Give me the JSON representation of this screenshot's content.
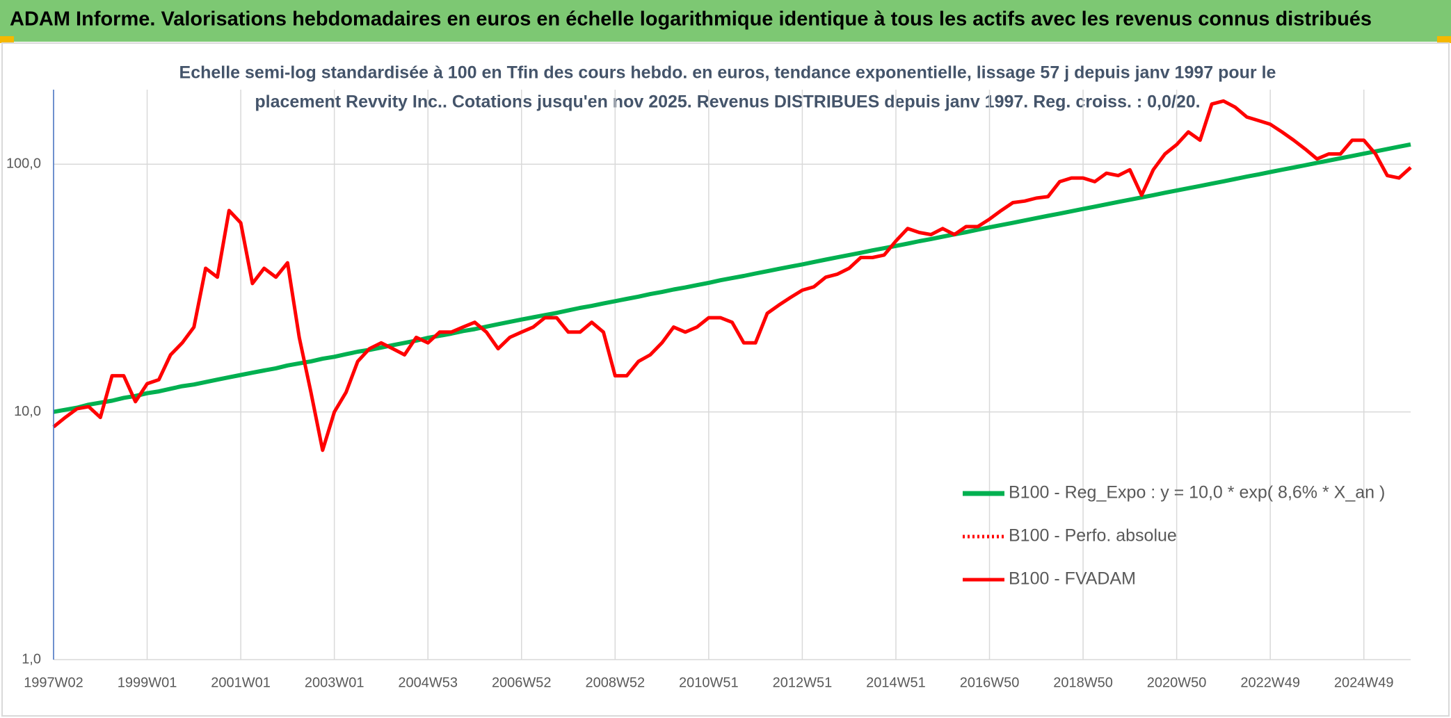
{
  "chart_data": {
    "type": "line",
    "title": "ADAM Informe. Valorisations hebdomadaires en euros en échelle logarithmique identique à tous les actifs avec les revenus connus distribués",
    "subtitle": [
      "Echelle semi-log standardisée à 100 en Tfin des cours hebdo. en euros, tendance exponentielle, lissage 57 j depuis janv 1997 pour le",
      "placement Revvity Inc.. Cotations jusqu'en nov 2025. Revenus DISTRIBUES depuis janv 1997. Reg. croiss. : 0,0/20."
    ],
    "log_scale": true,
    "grid": true,
    "legend": "right",
    "ylim": [
      1,
      200
    ],
    "yticks": [
      {
        "value": 1,
        "label": "1,0"
      },
      {
        "value": 10,
        "label": "10,0"
      },
      {
        "value": 100,
        "label": "100,0"
      }
    ],
    "categories": [
      "1997W02",
      null,
      null,
      null,
      null,
      null,
      null,
      null,
      "1999W01",
      null,
      null,
      null,
      null,
      null,
      null,
      null,
      "2001W01",
      null,
      null,
      null,
      null,
      null,
      null,
      null,
      "2003W01",
      null,
      null,
      null,
      null,
      null,
      null,
      null,
      "2004W53",
      null,
      null,
      null,
      null,
      null,
      null,
      null,
      "2006W52",
      null,
      null,
      null,
      null,
      null,
      null,
      null,
      "2008W52",
      null,
      null,
      null,
      null,
      null,
      null,
      null,
      "2010W51",
      null,
      null,
      null,
      null,
      null,
      null,
      null,
      "2012W51",
      null,
      null,
      null,
      null,
      null,
      null,
      null,
      "2014W51",
      null,
      null,
      null,
      null,
      null,
      null,
      null,
      "2016W50",
      null,
      null,
      null,
      null,
      null,
      null,
      null,
      "2018W50",
      null,
      null,
      null,
      null,
      null,
      null,
      null,
      "2020W50",
      null,
      null,
      null,
      null,
      null,
      null,
      null,
      "2022W49",
      null,
      null,
      null,
      null,
      null,
      null,
      null,
      "2024W49",
      null,
      null,
      null,
      null
    ],
    "series": [
      {
        "name": "B100 - Reg_Expo : y = 10,0 * exp( 8,6% *  X_an )",
        "color": "#00b050",
        "style": "solid",
        "values": [
          10.0,
          10.2,
          10.4,
          10.7,
          10.9,
          11.1,
          11.4,
          11.6,
          11.9,
          12.1,
          12.4,
          12.7,
          12.9,
          13.2,
          13.5,
          13.8,
          14.1,
          14.4,
          14.7,
          15.0,
          15.4,
          15.7,
          16.0,
          16.4,
          16.7,
          17.1,
          17.5,
          17.8,
          18.2,
          18.6,
          19.0,
          19.4,
          19.9,
          20.3,
          20.7,
          21.2,
          21.6,
          22.1,
          22.6,
          23.1,
          23.6,
          24.1,
          24.6,
          25.1,
          25.7,
          26.3,
          26.8,
          27.4,
          28.0,
          28.6,
          29.2,
          29.9,
          30.5,
          31.2,
          31.8,
          32.5,
          33.2,
          34.0,
          34.7,
          35.4,
          36.2,
          37.0,
          37.8,
          38.6,
          39.4,
          40.3,
          41.2,
          42.1,
          43.0,
          43.9,
          44.9,
          45.8,
          46.8,
          47.8,
          48.9,
          49.9,
          51.0,
          52.1,
          53.2,
          54.4,
          55.6,
          56.8,
          58.0,
          59.3,
          60.6,
          61.9,
          63.2,
          64.6,
          66.0,
          67.4,
          68.9,
          70.4,
          71.9,
          73.4,
          75.0,
          76.7,
          78.3,
          80.0,
          81.7,
          83.5,
          85.3,
          87.2,
          89.1,
          91.0,
          93.0,
          95.0,
          97.0,
          99.1,
          101.3,
          103.5,
          105.7,
          108.0,
          110.3,
          112.7,
          115.2,
          117.7,
          120.2
        ]
      },
      {
        "name": "B100 - Perfo. absolue",
        "color": "#ff0000",
        "style": "dotted",
        "values": [
          8.7,
          9.5,
          10.3,
          10.5,
          9.5,
          14,
          14,
          11,
          13,
          13.5,
          17,
          19,
          22,
          38,
          35,
          65,
          58,
          33,
          38,
          35,
          40,
          20,
          12,
          7,
          10,
          12,
          16,
          18,
          19,
          18,
          17,
          20,
          19,
          21,
          21,
          22,
          23,
          21,
          18,
          20,
          21,
          22,
          24,
          24,
          21,
          21,
          23,
          21,
          14,
          14,
          16,
          17,
          19,
          22,
          21,
          22,
          24,
          24,
          23,
          19,
          19,
          25,
          27,
          29,
          31,
          32,
          35,
          36,
          38,
          42,
          42,
          43,
          49,
          55,
          53,
          52,
          55,
          52,
          56,
          56,
          60,
          65,
          70,
          71,
          73,
          74,
          85,
          88,
          88,
          85,
          92,
          90,
          95,
          75,
          95,
          110,
          120,
          135,
          125,
          175,
          180,
          170,
          155,
          150,
          145,
          135,
          125,
          115,
          105,
          110,
          110,
          125,
          125,
          110,
          90,
          88,
          97
        ]
      },
      {
        "name": "B100 - FVADAM",
        "color": "#ff0000",
        "style": "solid",
        "values": [
          8.7,
          9.5,
          10.3,
          10.5,
          9.5,
          14,
          14,
          11,
          13,
          13.5,
          17,
          19,
          22,
          38,
          35,
          65,
          58,
          33,
          38,
          35,
          40,
          20,
          12,
          7,
          10,
          12,
          16,
          18,
          19,
          18,
          17,
          20,
          19,
          21,
          21,
          22,
          23,
          21,
          18,
          20,
          21,
          22,
          24,
          24,
          21,
          21,
          23,
          21,
          14,
          14,
          16,
          17,
          19,
          22,
          21,
          22,
          24,
          24,
          23,
          19,
          19,
          25,
          27,
          29,
          31,
          32,
          35,
          36,
          38,
          42,
          42,
          43,
          49,
          55,
          53,
          52,
          55,
          52,
          56,
          56,
          60,
          65,
          70,
          71,
          73,
          74,
          85,
          88,
          88,
          85,
          92,
          90,
          95,
          75,
          95,
          110,
          120,
          135,
          125,
          175,
          180,
          170,
          155,
          150,
          145,
          135,
          125,
          115,
          105,
          110,
          110,
          125,
          125,
          110,
          90,
          88,
          97
        ]
      }
    ]
  }
}
